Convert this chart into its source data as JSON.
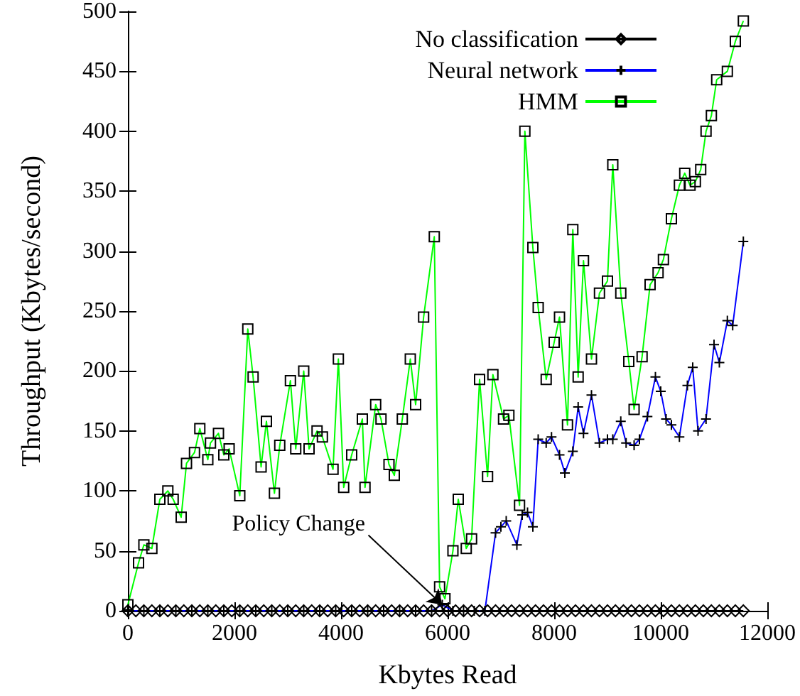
{
  "chart_data": {
    "type": "line",
    "xlabel": "Kbytes Read",
    "ylabel": "Throughput (Kbytes/second)",
    "xlim": [
      0,
      12000
    ],
    "xticks": [
      0,
      2000,
      4000,
      6000,
      8000,
      10000,
      12000
    ],
    "ylim": [
      0,
      500
    ],
    "yticks": [
      0,
      50,
      100,
      150,
      200,
      250,
      300,
      350,
      400,
      450,
      500
    ],
    "grid": false,
    "legend": "top right",
    "line_style": "solid",
    "annotations": [
      {
        "text": "Policy Change",
        "x": 5900,
        "y": 5
      }
    ],
    "series": [
      {
        "name": "No classification",
        "color": "#000000",
        "marker": "diamond",
        "x": [
          0,
          150,
          300,
          450,
          600,
          750,
          900,
          1050,
          1200,
          1350,
          1500,
          1650,
          1800,
          1950,
          2100,
          2250,
          2400,
          2550,
          2700,
          2850,
          3000,
          3150,
          3300,
          3450,
          3600,
          3750,
          3900,
          4050,
          4200,
          4350,
          4500,
          4650,
          4800,
          4950,
          5100,
          5250,
          5400,
          5550,
          5700,
          5850,
          6000,
          6150,
          6300,
          6450,
          6600,
          6750,
          6900,
          7050,
          7200,
          7350,
          7500,
          7650,
          7800,
          7950,
          8100,
          8250,
          8400,
          8550,
          8700,
          8850,
          9000,
          9150,
          9300,
          9450,
          9600,
          9750,
          9900,
          10050,
          10200,
          10350,
          10500,
          10650,
          10800,
          10950,
          11100,
          11250,
          11400,
          11550
        ],
        "values": [
          0,
          0,
          0,
          0,
          0,
          0,
          0,
          0,
          0,
          0,
          0,
          0,
          0,
          0,
          0,
          0,
          0,
          0,
          0,
          0,
          0,
          0,
          0,
          0,
          0,
          0,
          0,
          0,
          0,
          0,
          0,
          0,
          0,
          0,
          0,
          0,
          0,
          0,
          0,
          0,
          0,
          0,
          0,
          0,
          0,
          0,
          0,
          0,
          0,
          0,
          0,
          0,
          0,
          0,
          0,
          0,
          0,
          0,
          0,
          0,
          0,
          0,
          0,
          0,
          0,
          0,
          0,
          0,
          0,
          0,
          0,
          0,
          0,
          0,
          0,
          0,
          0,
          0
        ]
      },
      {
        "name": "Neural network",
        "color": "#0000ff",
        "marker": "cross",
        "x": [
          0,
          300,
          600,
          900,
          1200,
          1500,
          1800,
          2100,
          2400,
          2700,
          3000,
          3300,
          3600,
          3900,
          4200,
          4500,
          4800,
          5100,
          5400,
          5700,
          5900,
          6100,
          6300,
          6500,
          6700,
          6900,
          7000,
          7100,
          7300,
          7400,
          7500,
          7600,
          7700,
          7850,
          7950,
          8100,
          8200,
          8350,
          8450,
          8550,
          8700,
          8850,
          9000,
          9100,
          9250,
          9350,
          9500,
          9600,
          9750,
          9900,
          10000,
          10100,
          10200,
          10350,
          10500,
          10600,
          10700,
          10850,
          11000,
          11100,
          11250,
          11350,
          11550
        ],
        "values": [
          0,
          0,
          0,
          0,
          0,
          0,
          0,
          0,
          0,
          0,
          0,
          0,
          0,
          0,
          0,
          0,
          0,
          0,
          0,
          0,
          5,
          0,
          0,
          0,
          0,
          65,
          70,
          75,
          55,
          80,
          82,
          70,
          143,
          140,
          145,
          130,
          115,
          133,
          170,
          148,
          180,
          140,
          143,
          143,
          158,
          140,
          138,
          143,
          162,
          195,
          183,
          160,
          155,
          145,
          188,
          203,
          150,
          160,
          222,
          207,
          242,
          238,
          308
        ]
      },
      {
        "name": "HMM",
        "color": "#00ff00",
        "marker": "square",
        "x": [
          0,
          200,
          300,
          450,
          600,
          750,
          850,
          1000,
          1100,
          1250,
          1350,
          1500,
          1550,
          1700,
          1800,
          1900,
          2100,
          2250,
          2350,
          2500,
          2600,
          2750,
          2850,
          3050,
          3150,
          3300,
          3400,
          3550,
          3650,
          3850,
          3950,
          4050,
          4200,
          4400,
          4450,
          4650,
          4750,
          4900,
          5000,
          5150,
          5300,
          5400,
          5550,
          5750,
          5850,
          5950,
          6100,
          6200,
          6350,
          6450,
          6600,
          6750,
          6850,
          7050,
          7150,
          7350,
          7450,
          7600,
          7700,
          7850,
          8000,
          8100,
          8250,
          8350,
          8450,
          8550,
          8700,
          8850,
          9000,
          9100,
          9250,
          9400,
          9500,
          9650,
          9800,
          9950,
          10050,
          10200,
          10350,
          10450,
          10550,
          10650,
          10750,
          10850,
          10950,
          11050,
          11250,
          11400,
          11550
        ],
        "values": [
          5,
          40,
          55,
          52,
          93,
          100,
          93,
          78,
          123,
          132,
          152,
          126,
          140,
          148,
          130,
          135,
          96,
          235,
          195,
          120,
          158,
          98,
          138,
          192,
          135,
          200,
          135,
          150,
          145,
          118,
          210,
          103,
          130,
          160,
          103,
          172,
          160,
          122,
          113,
          160,
          210,
          172,
          245,
          312,
          20,
          10,
          50,
          93,
          52,
          60,
          193,
          112,
          197,
          160,
          163,
          88,
          400,
          303,
          253,
          193,
          224,
          245,
          155,
          318,
          195,
          292,
          210,
          265,
          275,
          372,
          265,
          208,
          168,
          212,
          272,
          282,
          293,
          327,
          355,
          365,
          355,
          358,
          368,
          400,
          413,
          443,
          450,
          475,
          492
        ]
      }
    ]
  }
}
